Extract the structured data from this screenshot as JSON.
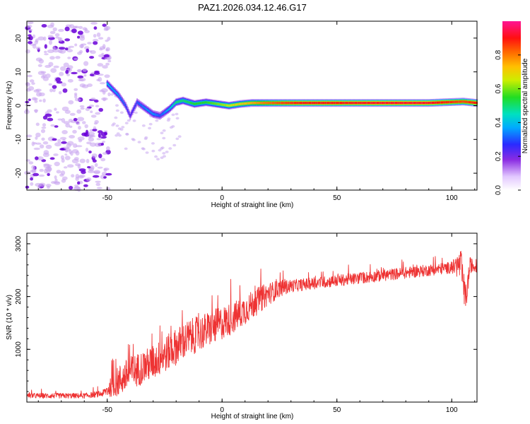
{
  "title": "PAZ1.2026.034.12.46.G17",
  "colors": {
    "line": "#ee3333",
    "axis": "#000000",
    "spec_dot_light": "#c9a7f0",
    "spec_dot_dark": "#6a00d8"
  },
  "chart_data": [
    {
      "type": "heatmap",
      "name": "spectrogram",
      "xlabel": "Height of straight line (km)",
      "ylabel": "Frequency (Hz)",
      "xlim": [
        -85,
        111
      ],
      "ylim": [
        -25,
        25
      ],
      "xticks": [
        -50,
        0,
        50,
        100
      ],
      "yticks": [
        -20,
        -10,
        0,
        10,
        20
      ],
      "colorbar": {
        "label": "Normalized spectral amplitude",
        "range": [
          0.0,
          1.0
        ],
        "ticks": [
          "0.0",
          "0.2",
          "0.4",
          "0.6",
          "0.8"
        ],
        "tick_values": [
          0.0,
          0.2,
          0.4,
          0.6,
          0.8
        ],
        "colormap": "rainbow: 0.0 white → violet → blue → cyan → green → yellow → orange → red → magenta"
      },
      "ridge": {
        "description": "dominant frequency ridge vs height",
        "x": [
          -50,
          -45,
          -42,
          -40,
          -37,
          -33,
          -30,
          -27,
          -23,
          -20,
          -17,
          -12,
          -7,
          -2,
          3,
          8,
          13,
          18,
          25,
          35,
          50,
          70,
          90,
          105,
          111
        ],
        "freq": [
          6.5,
          3,
          0,
          -3,
          1,
          -1,
          -2.5,
          -3,
          -1,
          1,
          1.5,
          0.5,
          1,
          0.5,
          0,
          0.5,
          0.8,
          0.8,
          0.8,
          0.8,
          0.8,
          0.8,
          0.8,
          1.2,
          0.8
        ],
        "amplitude": [
          0.4,
          0.35,
          0.3,
          0.25,
          0.3,
          0.35,
          0.35,
          0.3,
          0.4,
          0.5,
          0.5,
          0.55,
          0.55,
          0.6,
          0.65,
          0.7,
          0.75,
          0.8,
          0.85,
          0.9,
          0.9,
          0.92,
          0.92,
          0.85,
          0.9
        ]
      },
      "noise_region": {
        "x_from": -85,
        "x_to": -49,
        "freq_from": -25,
        "freq_to": 25,
        "amplitude": 0.1
      }
    },
    {
      "type": "line",
      "name": "snr",
      "xlabel": "Height of straight line (km)",
      "ylabel": "SNR (10 * v/v)",
      "xlim": [
        -85,
        111
      ],
      "ylim": [
        0,
        3200
      ],
      "xticks": [
        -50,
        0,
        50,
        100
      ],
      "yticks": [
        1000,
        2000,
        3000
      ],
      "series": [
        {
          "name": "SNR",
          "trend_x": [
            -85,
            -60,
            -52,
            -45,
            -40,
            -35,
            -30,
            -25,
            -20,
            -15,
            -10,
            -5,
            0,
            5,
            10,
            15,
            20,
            25,
            30,
            40,
            50,
            60,
            70,
            80,
            90,
            100,
            104,
            106,
            108,
            111
          ],
          "trend_y": [
            120,
            120,
            160,
            400,
            550,
            650,
            750,
            900,
            1050,
            1200,
            1300,
            1400,
            1500,
            1600,
            1750,
            1900,
            2050,
            2150,
            2200,
            2250,
            2300,
            2350,
            2400,
            2450,
            2500,
            2550,
            2600,
            1900,
            2600,
            2550
          ],
          "noise_amplitude": [
            50,
            50,
            60,
            300,
            320,
            320,
            330,
            340,
            350,
            350,
            340,
            330,
            320,
            300,
            280,
            260,
            220,
            160,
            120,
            110,
            110,
            110,
            110,
            110,
            110,
            110,
            300,
            300,
            150,
            100
          ]
        }
      ]
    }
  ]
}
